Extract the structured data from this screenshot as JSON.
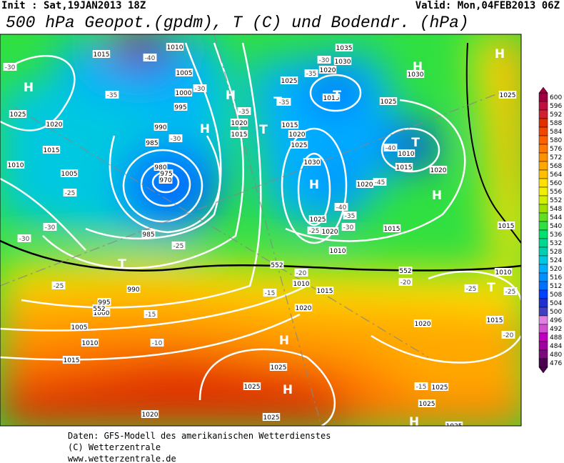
{
  "header": {
    "init": "Init : Sat,19JAN2013 18Z",
    "valid": "Valid: Mon,04FEB2013 06Z",
    "title": "500 hPa Geopot.(gpdm), T (C) und Bodendr. (hPa)"
  },
  "legend": {
    "labels": [
      600,
      596,
      592,
      588,
      584,
      580,
      576,
      572,
      568,
      564,
      560,
      556,
      552,
      548,
      544,
      540,
      536,
      532,
      528,
      524,
      520,
      516,
      512,
      508,
      504,
      500,
      496,
      492,
      488,
      484,
      480,
      476
    ],
    "colors": [
      "#a00040",
      "#c01040",
      "#d02030",
      "#e03000",
      "#f04800",
      "#ff6000",
      "#ff7800",
      "#ff9000",
      "#ffa800",
      "#ffc000",
      "#ffe000",
      "#f0f000",
      "#d0f000",
      "#a0e000",
      "#60e020",
      "#30e040",
      "#00e070",
      "#00d890",
      "#00d0b0",
      "#00c8e0",
      "#00b0ff",
      "#0090ff",
      "#0070ff",
      "#0040ff",
      "#2030d0",
      "#4040c0",
      "#e080e0",
      "#d050d0",
      "#c000c0",
      "#a000a0",
      "#7a0a7a",
      "#4b0050"
    ]
  },
  "isobar_labels": [
    "1010",
    "1015",
    "1005",
    "1000",
    "995",
    "990",
    "985",
    "980",
    "975",
    "970",
    "985",
    "990",
    "995",
    "1000",
    "1005",
    "1010",
    "1015",
    "1025",
    "1020",
    "1015",
    "1010",
    "1005",
    "1020",
    "1015",
    "1015",
    "1020",
    "1025",
    "1030",
    "1025",
    "1020",
    "1010",
    "1015",
    "1020",
    "1020",
    "1015",
    "1010",
    "1015",
    "1020",
    "1030",
    "1035",
    "1025",
    "1030",
    "1025",
    "1025",
    "1015",
    "1010",
    "1015",
    "1020",
    "1025",
    "1025",
    "1025",
    "1020",
    "1015",
    "1010",
    "1025",
    "1020",
    "1025",
    "1025"
  ],
  "temperature_labels": [
    "-40",
    "-35",
    "-30",
    "-30",
    "-30",
    "-25",
    "-30",
    "-30",
    "-25",
    "-25",
    "-20",
    "-15",
    "-15",
    "-10",
    "-20",
    "-25",
    "-25",
    "-20",
    "-15",
    "-35",
    "-30",
    "-35",
    "-35",
    "-40",
    "-45",
    "-40",
    "-35",
    "-30",
    "-25"
  ],
  "contour_552_labels": [
    "552",
    "552",
    "552"
  ],
  "pressure_centers": [
    "H",
    "H",
    "T",
    "H",
    "T",
    "T",
    "T",
    "H",
    "H",
    "H",
    "H",
    "T",
    "T",
    "H",
    "H",
    "H"
  ],
  "footer": [
    "Daten: GFS-Modell des amerikanischen Wetterdienstes",
    "(C) Wetterzentrale",
    "www.wetterzentrale.de"
  ]
}
